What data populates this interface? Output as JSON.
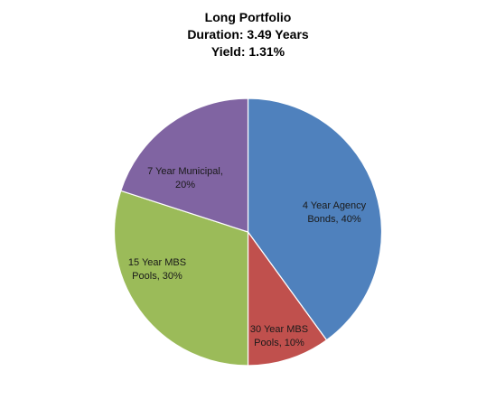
{
  "chart_data": {
    "type": "pie",
    "title": "Long Portfolio",
    "subtitle_lines": [
      "Duration: 3.49 Years",
      "Yield: 1.31%"
    ],
    "start_angle_deg": 0,
    "direction": "clockwise",
    "legend": "none",
    "slices": [
      {
        "label_lines": [
          "4 Year Agency",
          "Bonds, 40%"
        ],
        "category": "4 Year Agency Bonds",
        "value": 40,
        "color": "#4F81BD"
      },
      {
        "label_lines": [
          "30 Year MBS",
          "Pools, 10%"
        ],
        "category": "30 Year MBS Pools",
        "value": 10,
        "color": "#C0504D"
      },
      {
        "label_lines": [
          "15 Year MBS",
          "Pools, 30%"
        ],
        "category": "15 Year MBS Pools",
        "value": 30,
        "color": "#9BBB59"
      },
      {
        "label_lines": [
          "7 Year Municipal,",
          "20%"
        ],
        "category": "7 Year Municipal",
        "value": 20,
        "color": "#8064A2"
      }
    ]
  }
}
